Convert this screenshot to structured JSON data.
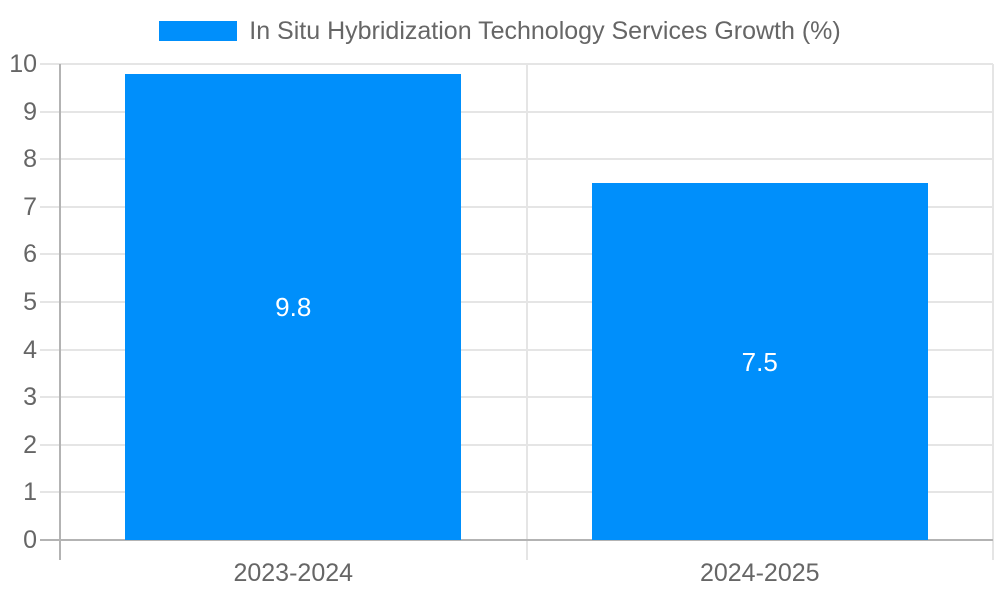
{
  "legend": {
    "label": "In Situ Hybridization Technology Services Growth (%)"
  },
  "chart_data": {
    "type": "bar",
    "title": "",
    "series_name": "In Situ Hybridization Technology Services Growth (%)",
    "categories": [
      "2023-2024",
      "2024-2025"
    ],
    "values": [
      9.8,
      7.5
    ],
    "value_labels": [
      "9.8",
      "7.5"
    ],
    "xlabel": "",
    "ylabel": "",
    "ylim": [
      0,
      10
    ],
    "ytick_step": 1,
    "ytick_labels": [
      "0",
      "1",
      "2",
      "3",
      "4",
      "5",
      "6",
      "7",
      "8",
      "9",
      "10"
    ],
    "grid": true,
    "legend_position": "top"
  },
  "colors": {
    "bar": "#008FFB",
    "value_label": "#ffffff",
    "gridline": "#e5e5e5",
    "axis_line": "#b3b3b3",
    "text": "#666666",
    "background": "#ffffff"
  }
}
